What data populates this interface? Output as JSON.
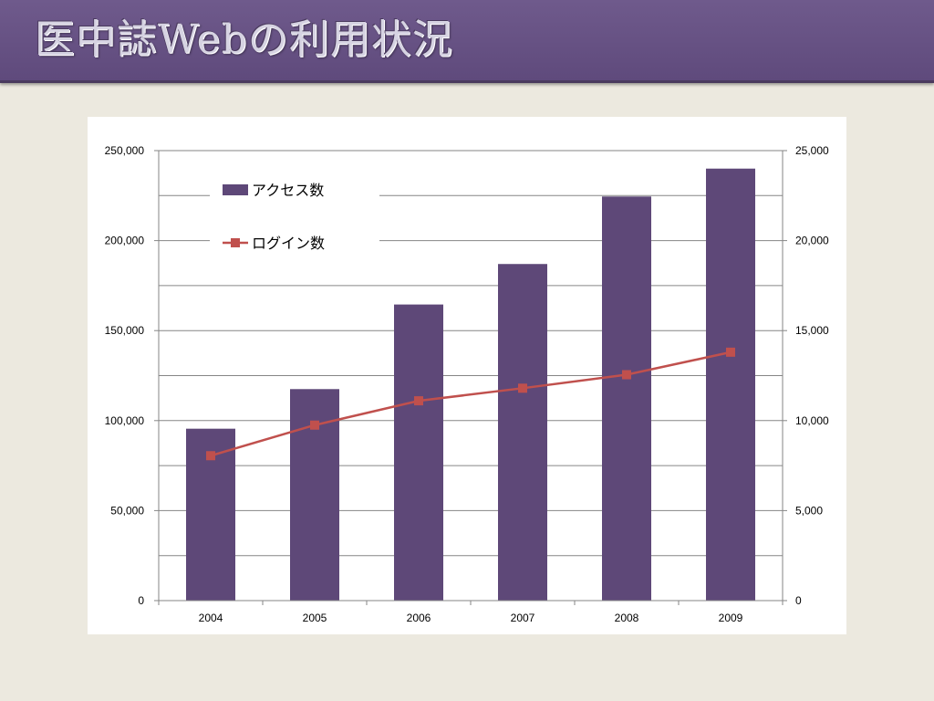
{
  "slide": {
    "title": "医中誌Webの利用状況"
  },
  "colors": {
    "title_bar": "#634e80",
    "background": "#ece9df",
    "bar": "#5e4878",
    "line": "#c0504d"
  },
  "chart_data": {
    "type": "bar",
    "categories": [
      "2004",
      "2005",
      "2006",
      "2007",
      "2008",
      "2009"
    ],
    "series": [
      {
        "name": "アクセス数",
        "type": "bar",
        "axis": "left",
        "values": [
          95500,
          117500,
          164500,
          187000,
          224500,
          240000
        ]
      },
      {
        "name": "ログイン数",
        "type": "line",
        "axis": "right",
        "values": [
          8050,
          9750,
          11100,
          11800,
          12550,
          13800
        ]
      }
    ],
    "y_left": {
      "min": 0,
      "max": 250000,
      "ticks": [
        "0",
        "50,000",
        "100,000",
        "150,000",
        "200,000",
        "250,000"
      ]
    },
    "y_right": {
      "min": 0,
      "max": 25000,
      "ticks": [
        "0",
        "5,000",
        "10,000",
        "15,000",
        "20,000",
        "25,000"
      ]
    },
    "grid": true,
    "legend_position": "top-left"
  }
}
